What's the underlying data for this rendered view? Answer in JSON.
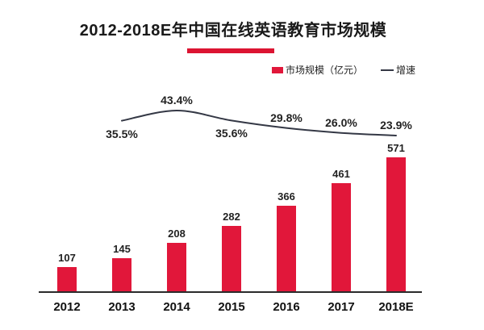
{
  "title": "2012-2018E年中国在线英语教育市场规模",
  "legend": {
    "bar_label": "市场规模（亿元）",
    "line_label": "增速"
  },
  "colors": {
    "bar": "#E1173A",
    "underline": "#DC1432",
    "line": "#343845",
    "axis": "#2B2B2B",
    "text": "#1F1F1F"
  },
  "chart_data": {
    "type": "bar",
    "subtype": "bar-line-combo",
    "title": "2012-2018E年中国在线英语教育市场规模",
    "categories": [
      "2012",
      "2013",
      "2014",
      "2015",
      "2016",
      "2017",
      "2018E"
    ],
    "series": [
      {
        "name": "市场规模（亿元）",
        "type": "bar",
        "values": [
          107,
          145,
          208,
          282,
          366,
          461,
          571
        ],
        "color": "#E1173A"
      },
      {
        "name": "增速",
        "type": "line",
        "values": [
          null,
          35.5,
          43.4,
          35.6,
          29.8,
          26.0,
          23.9
        ],
        "labels": [
          null,
          "35.5%",
          "43.4%",
          "35.6%",
          "29.8%",
          "26.0%",
          "23.9%"
        ],
        "label_positions": [
          null,
          "below",
          "above",
          "below",
          "above",
          "above",
          "above"
        ],
        "color": "#343845"
      }
    ],
    "xlabel": "",
    "ylabel": "",
    "value_labels_shown": true,
    "gridlines": false,
    "axis_ticks_shown": false,
    "legend_position": "top-right"
  }
}
